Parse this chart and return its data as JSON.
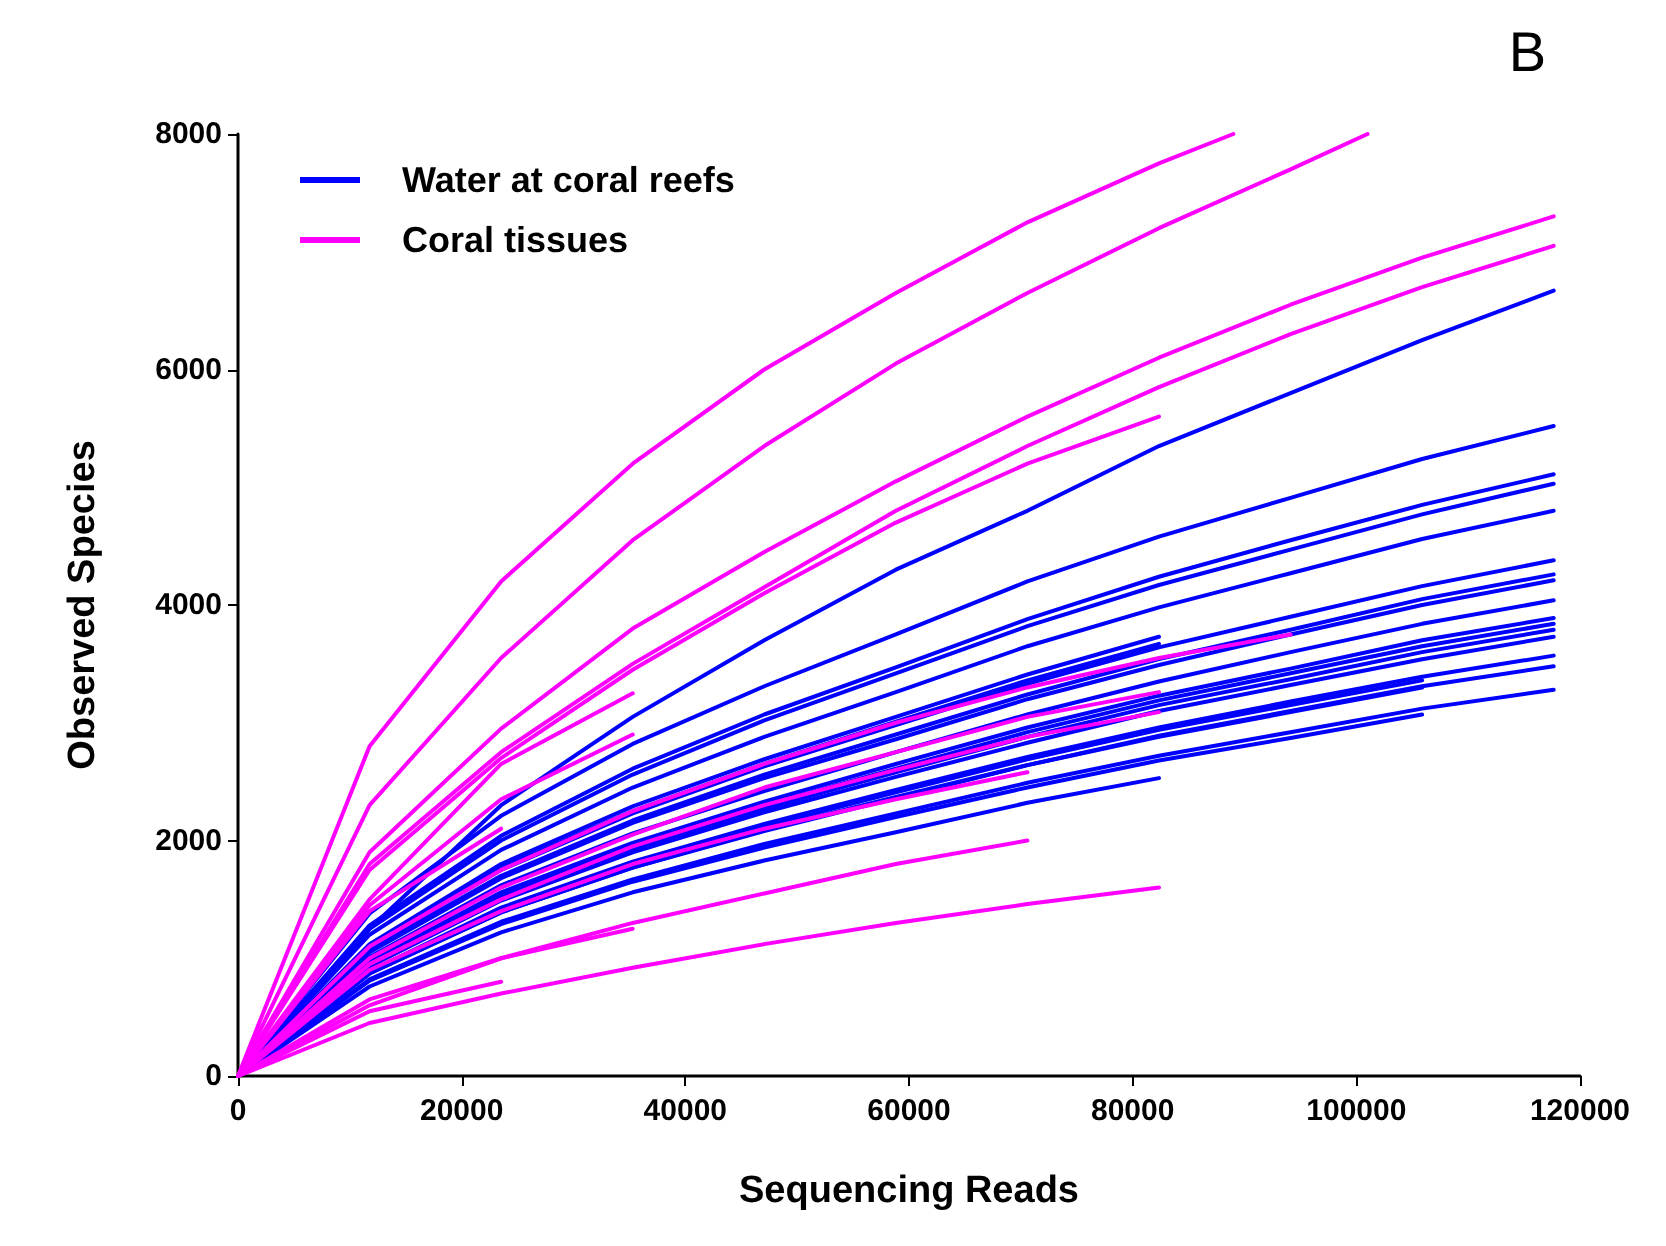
{
  "chart_data": {
    "type": "line",
    "xlabel": "Sequencing Reads",
    "ylabel": "Observed Species",
    "annotations": [
      "B"
    ],
    "x": [
      0,
      11765,
      23529,
      35294,
      47059,
      58824,
      70588,
      82353,
      94118,
      105882,
      117647
    ],
    "xlim": [
      0,
      120000
    ],
    "xticks": [
      0,
      20000,
      40000,
      60000,
      80000,
      100000,
      120000
    ],
    "ylim": [
      0,
      8000
    ],
    "yticks": [
      0,
      2000,
      4000,
      6000,
      8000
    ],
    "grid": false,
    "legend": "top left",
    "marker": "none",
    "line_style": "solid",
    "series": [
      {
        "name": "Water at coral reefs",
        "color": "#0000ff",
        "values": [
          0,
          1250,
          2300,
          3050,
          3700,
          4300,
          4800,
          5350,
          5800,
          6250,
          6670
        ]
      },
      {
        "color": "#0000ff",
        "values": [
          0,
          1380,
          2210,
          2820,
          3310,
          3750,
          4200,
          4580,
          4910,
          5240,
          5520
        ]
      },
      {
        "color": "#0000ff",
        "values": [
          0,
          1280,
          2040,
          2610,
          3070,
          3470,
          3880,
          4240,
          4550,
          4850,
          5110
        ]
      },
      {
        "color": "#0000ff",
        "values": [
          0,
          1250,
          2000,
          2560,
          3020,
          3420,
          3820,
          4170,
          4470,
          4770,
          5030
        ]
      },
      {
        "color": "#0000ff",
        "values": [
          0,
          1200,
          1920,
          2450,
          2880,
          3260,
          3650,
          3980,
          4270,
          4560,
          4800
        ]
      },
      {
        "color": "#0000ff",
        "values": [
          0,
          1100,
          1750,
          2230,
          2630,
          2980,
          3330,
          3640,
          3900,
          4160,
          4380
        ]
      },
      {
        "color": "#0000ff",
        "values": [
          0,
          1070,
          1700,
          2170,
          2560,
          2900,
          3240,
          3540,
          3790,
          4050,
          4260
        ]
      },
      {
        "color": "#0000ff",
        "values": [
          0,
          1050,
          1680,
          2150,
          2530,
          2860,
          3200,
          3490,
          3750,
          4000,
          4210
        ]
      },
      {
        "color": "#0000ff",
        "values": [
          0,
          1010,
          1620,
          2060,
          2420,
          2750,
          3070,
          3350,
          3600,
          3840,
          4040
        ]
      },
      {
        "color": "#0000ff",
        "values": [
          0,
          970,
          1560,
          1980,
          2330,
          2650,
          2960,
          3230,
          3460,
          3700,
          3890
        ]
      },
      {
        "color": "#0000ff",
        "values": [
          0,
          960,
          1540,
          1960,
          2300,
          2610,
          2920,
          3190,
          3420,
          3650,
          3840
        ]
      },
      {
        "color": "#0000ff",
        "values": [
          0,
          950,
          1520,
          1930,
          2270,
          2580,
          2880,
          3150,
          3370,
          3600,
          3790
        ]
      },
      {
        "color": "#0000ff",
        "values": [
          0,
          930,
          1490,
          1900,
          2240,
          2540,
          2830,
          3100,
          3320,
          3540,
          3730
        ]
      },
      {
        "color": "#0000ff",
        "values": [
          0,
          890,
          1430,
          1820,
          2140,
          2430,
          2710,
          2960,
          3180,
          3390,
          3570
        ]
      },
      {
        "color": "#0000ff",
        "values": [
          0,
          870,
          1390,
          1770,
          2090,
          2370,
          2640,
          2890,
          3100,
          3310,
          3480
        ]
      },
      {
        "color": "#0000ff",
        "values": [
          0,
          820,
          1310,
          1670,
          1970,
          2230,
          2490,
          2720,
          2920,
          3120,
          3280
        ]
      },
      {
        "color": "#0000ff",
        "values": [
          0,
          890,
          1420,
          1810,
          2120,
          2410,
          2690,
          2940,
          3150,
          3360,
          null
        ]
      },
      {
        "color": "#0000ff",
        "values": [
          0,
          870,
          1390,
          1770,
          2080,
          2360,
          2640,
          2880,
          3090,
          3300,
          null
        ]
      },
      {
        "color": "#0000ff",
        "values": [
          0,
          1120,
          1800,
          2290,
          2690,
          3050,
          3410,
          3730,
          null,
          null,
          null
        ]
      },
      {
        "color": "#0000ff",
        "values": [
          0,
          1110,
          1770,
          2250,
          2650,
          3010,
          3360,
          3670,
          null,
          null,
          null
        ]
      },
      {
        "color": "#0000ff",
        "values": [
          0,
          760,
          1220,
          1560,
          1830,
          2070,
          2320,
          2530,
          null,
          null,
          null
        ]
      },
      {
        "color": "#0000ff",
        "values": [
          0,
          810,
          1290,
          1650,
          1940,
          2200,
          2450,
          2680,
          2870,
          3070,
          null
        ]
      },
      {
        "name": "Coral tissues",
        "color": "#ff00ff",
        "x": [
          0,
          11765,
          23529,
          35294,
          47059,
          58824,
          70588,
          82353,
          89000
        ],
        "values": [
          0,
          2800,
          4200,
          5200,
          6000,
          6650,
          7250,
          7750,
          8000
        ]
      },
      {
        "color": "#ff00ff",
        "x": [
          0,
          11765,
          23529,
          35294,
          47059,
          58824,
          70588,
          82353,
          94118,
          101000
        ],
        "values": [
          0,
          2300,
          3550,
          4550,
          5350,
          6050,
          6650,
          7200,
          7700,
          8000
        ]
      },
      {
        "color": "#ff00ff",
        "values": [
          0,
          1900,
          2950,
          3800,
          4450,
          5050,
          5600,
          6100,
          6550,
          6950,
          7300
        ]
      },
      {
        "color": "#ff00ff",
        "values": [
          0,
          1800,
          2750,
          3500,
          4150,
          4800,
          5350,
          5850,
          6300,
          6700,
          7050
        ]
      },
      {
        "color": "#ff00ff",
        "values": [
          0,
          1750,
          2700,
          3450,
          4100,
          4700,
          5200,
          5600,
          null,
          null,
          null
        ]
      },
      {
        "color": "#ff00ff",
        "values": [
          0,
          1500,
          2650,
          3250,
          null,
          null,
          null,
          null,
          null,
          null,
          null
        ]
      },
      {
        "color": "#ff00ff",
        "values": [
          0,
          1450,
          2350,
          2900,
          null,
          null,
          null,
          null,
          null,
          null,
          null
        ]
      },
      {
        "color": "#ff00ff",
        "values": [
          0,
          1400,
          2100,
          null,
          null,
          null,
          null,
          null,
          null,
          null,
          null
        ]
      },
      {
        "color": "#ff00ff",
        "values": [
          0,
          1100,
          1750,
          2250,
          2650,
          3000,
          3300,
          3550,
          3750,
          null,
          null
        ]
      },
      {
        "color": "#ff00ff",
        "values": [
          0,
          1000,
          1600,
          2050,
          2450,
          2750,
          3050,
          3260,
          null,
          null,
          null
        ]
      },
      {
        "color": "#ff00ff",
        "values": [
          0,
          950,
          1500,
          1950,
          2300,
          2600,
          2880,
          3090,
          null,
          null,
          null
        ]
      },
      {
        "color": "#ff00ff",
        "values": [
          0,
          900,
          1400,
          1800,
          2100,
          2350,
          2580,
          null,
          null,
          null,
          null
        ]
      },
      {
        "color": "#ff00ff",
        "values": [
          0,
          650,
          1000,
          1300,
          1550,
          1800,
          2000,
          null,
          null,
          null,
          null
        ]
      },
      {
        "color": "#ff00ff",
        "values": [
          0,
          450,
          700,
          920,
          1120,
          1300,
          1460,
          1600,
          null,
          null,
          null
        ]
      },
      {
        "color": "#ff00ff",
        "values": [
          0,
          600,
          1000,
          1250,
          null,
          null,
          null,
          null,
          null,
          null,
          null
        ]
      },
      {
        "color": "#ff00ff",
        "values": [
          0,
          550,
          800,
          null,
          null,
          null,
          null,
          null,
          null,
          null,
          null
        ]
      }
    ]
  }
}
